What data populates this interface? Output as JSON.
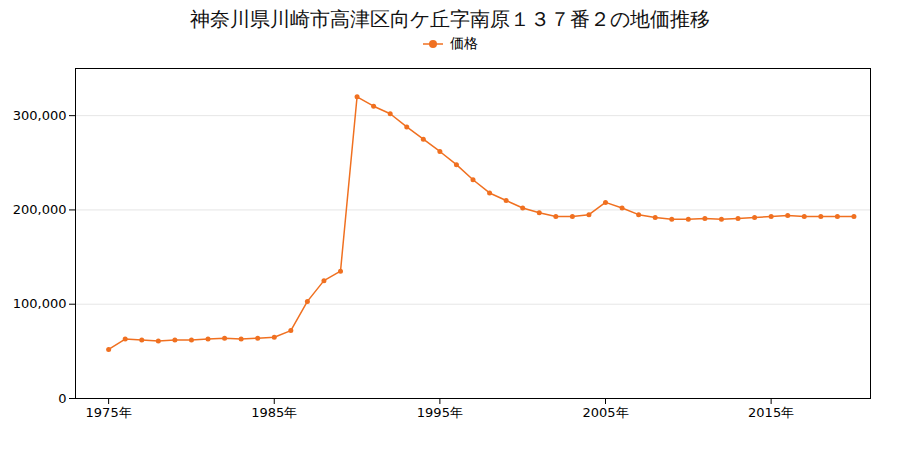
{
  "chart_data": {
    "type": "line",
    "title": "神奈川県川崎市高津区向ケ丘字南原１３７番２の地価推移",
    "x": [
      1975,
      1976,
      1977,
      1978,
      1979,
      1980,
      1981,
      1982,
      1983,
      1984,
      1985,
      1986,
      1987,
      1988,
      1989,
      1990,
      1991,
      1992,
      1993,
      1994,
      1995,
      1996,
      1997,
      1998,
      1999,
      2000,
      2001,
      2002,
      2003,
      2004,
      2005,
      2006,
      2007,
      2008,
      2009,
      2010,
      2011,
      2012,
      2013,
      2014,
      2015,
      2016,
      2017,
      2018,
      2019,
      2020
    ],
    "series": [
      {
        "name": "価格",
        "color": "#f07020",
        "marker": "circle",
        "values": [
          52000,
          63000,
          62000,
          61000,
          62000,
          62000,
          63000,
          64000,
          63000,
          64000,
          65000,
          72000,
          103000,
          125000,
          135000,
          320000,
          310000,
          302000,
          288000,
          275000,
          262000,
          248000,
          232000,
          218000,
          210000,
          202000,
          197000,
          193000,
          193000,
          195000,
          208000,
          202000,
          195000,
          192000,
          190000,
          190000,
          191000,
          190000,
          191000,
          192000,
          193000,
          194000,
          193000,
          193000,
          193000,
          193000
        ]
      }
    ],
    "xlim": [
      1973,
      2021
    ],
    "ylim": [
      0,
      350000
    ],
    "xticks": [
      {
        "value": 1975,
        "label": "1975年"
      },
      {
        "value": 1985,
        "label": "1985年"
      },
      {
        "value": 1995,
        "label": "1995年"
      },
      {
        "value": 2005,
        "label": "2005年"
      },
      {
        "value": 2015,
        "label": "2015年"
      }
    ],
    "yticks": [
      0,
      {
        "value": 100000,
        "label": "100,000"
      },
      {
        "value": 200000,
        "label": "200,000"
      },
      {
        "value": 300000,
        "label": "300,000"
      }
    ],
    "grid": "y",
    "legend": "top"
  }
}
